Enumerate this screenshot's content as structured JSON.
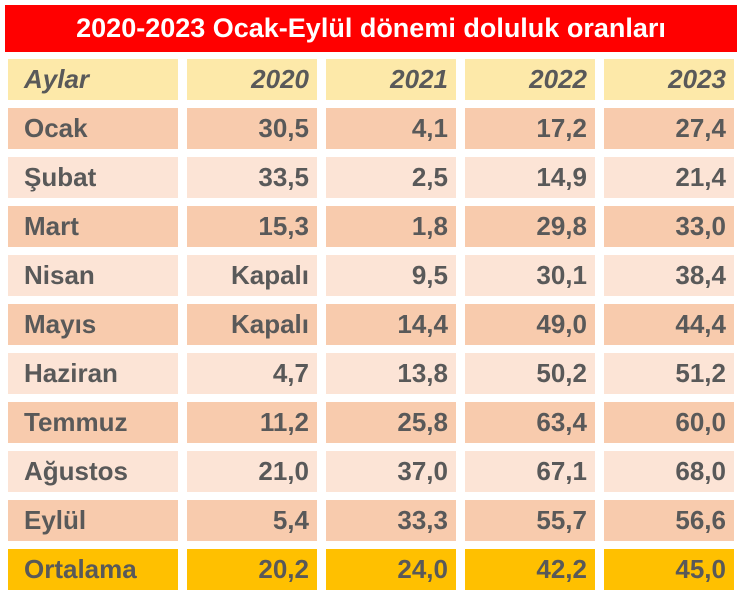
{
  "title": "2020-2023 Ocak-Eylül dönemi doluluk oranları",
  "table": {
    "header": [
      "Aylar",
      "2020",
      "2021",
      "2022",
      "2023"
    ],
    "rows": [
      [
        "Ocak",
        "30,5",
        "4,1",
        "17,2",
        "27,4"
      ],
      [
        "Şubat",
        "33,5",
        "2,5",
        "14,9",
        "21,4"
      ],
      [
        "Mart",
        "15,3",
        "1,8",
        "29,8",
        "33,0"
      ],
      [
        "Nisan",
        "Kapalı",
        "9,5",
        "30,1",
        "38,4"
      ],
      [
        "Mayıs",
        "Kapalı",
        "14,4",
        "49,0",
        "44,4"
      ],
      [
        "Haziran",
        "4,7",
        "13,8",
        "50,2",
        "51,2"
      ],
      [
        "Temmuz",
        "11,2",
        "25,8",
        "63,4",
        "60,0"
      ],
      [
        "Ağustos",
        "21,0",
        "37,0",
        "67,1",
        "68,0"
      ],
      [
        "Eylül",
        "5,4",
        "33,3",
        "55,7",
        "56,6"
      ]
    ],
    "footer": [
      "Ortalama",
      "20,2",
      "24,0",
      "42,2",
      "45,0"
    ]
  }
}
